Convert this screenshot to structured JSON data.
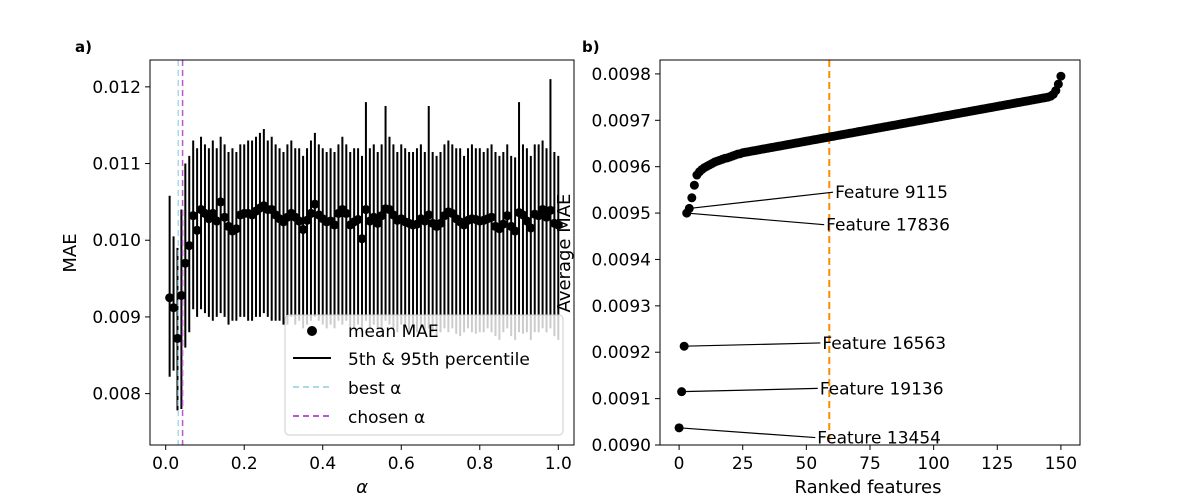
{
  "chart_data": [
    {
      "type": "scatter",
      "panel_label": "a)",
      "xlabel": "α",
      "ylabel": "MAE",
      "xlim": [
        -0.04,
        1.04
      ],
      "ylim": [
        0.00733,
        0.01235
      ],
      "xticks": [
        0.0,
        0.2,
        0.4,
        0.6,
        0.8,
        1.0
      ],
      "xtick_labels": [
        "0.0",
        "0.2",
        "0.4",
        "0.6",
        "0.8",
        "1.0"
      ],
      "yticks": [
        0.008,
        0.009,
        0.01,
        0.011,
        0.012
      ],
      "ytick_labels": [
        "0.008",
        "0.009",
        "0.010",
        "0.011",
        "0.012"
      ],
      "best_alpha": 0.032,
      "chosen_alpha": 0.043,
      "colors": {
        "points": "#000000",
        "errorbars": "#000000",
        "best_alpha": "#add8e6",
        "chosen_alpha": "#ba55d3"
      },
      "legend": {
        "placement": "lower-right",
        "entries": [
          {
            "key": "mean",
            "label": "mean MAE"
          },
          {
            "key": "errorbar",
            "label": "5th & 95th percentile"
          },
          {
            "key": "best",
            "label": "best α"
          },
          {
            "key": "chosen",
            "label": "chosen α"
          }
        ]
      },
      "series": [
        {
          "alpha": [
            0.01,
            0.02,
            0.03,
            0.04,
            0.05,
            0.06,
            0.07,
            0.08,
            0.09,
            0.1,
            0.11,
            0.12,
            0.13,
            0.14,
            0.15,
            0.16,
            0.17,
            0.18,
            0.19,
            0.2,
            0.21,
            0.22,
            0.23,
            0.24,
            0.25,
            0.26,
            0.27,
            0.28,
            0.29,
            0.3,
            0.31,
            0.32,
            0.33,
            0.34,
            0.35,
            0.36,
            0.37,
            0.38,
            0.39,
            0.4,
            0.41,
            0.42,
            0.43,
            0.44,
            0.45,
            0.46,
            0.47,
            0.48,
            0.49,
            0.5,
            0.51,
            0.52,
            0.53,
            0.54,
            0.55,
            0.56,
            0.57,
            0.58,
            0.59,
            0.6,
            0.61,
            0.62,
            0.63,
            0.64,
            0.65,
            0.66,
            0.67,
            0.68,
            0.69,
            0.7,
            0.71,
            0.72,
            0.73,
            0.74,
            0.75,
            0.76,
            0.77,
            0.78,
            0.79,
            0.8,
            0.81,
            0.82,
            0.83,
            0.84,
            0.85,
            0.86,
            0.87,
            0.88,
            0.89,
            0.9,
            0.91,
            0.92,
            0.93,
            0.94,
            0.95,
            0.96,
            0.97,
            0.98,
            0.99,
            1.0
          ],
          "mean_mae": [
            0.00925,
            0.00912,
            0.00872,
            0.00928,
            0.0097,
            0.00993,
            0.01032,
            0.01013,
            0.0104,
            0.01035,
            0.01028,
            0.01035,
            0.01025,
            0.0105,
            0.0103,
            0.01018,
            0.01012,
            0.01015,
            0.01033,
            0.01035,
            0.01035,
            0.01033,
            0.01038,
            0.01042,
            0.01045,
            0.0104,
            0.0104,
            0.01033,
            0.01028,
            0.01024,
            0.0103,
            0.01035,
            0.0103,
            0.01025,
            0.01014,
            0.01026,
            0.01035,
            0.01047,
            0.01033,
            0.01028,
            0.01024,
            0.01025,
            0.0102,
            0.01035,
            0.0104,
            0.01035,
            0.0102,
            0.01024,
            0.01027,
            0.01002,
            0.0104,
            0.01025,
            0.0103,
            0.01022,
            0.01032,
            0.01041,
            0.0104,
            0.01033,
            0.01026,
            0.01028,
            0.01024,
            0.01022,
            0.0102,
            0.01021,
            0.01028,
            0.01025,
            0.01033,
            0.01022,
            0.01018,
            0.01022,
            0.01032,
            0.01037,
            0.01035,
            0.01028,
            0.01024,
            0.0102,
            0.01026,
            0.01028,
            0.01027,
            0.01025,
            0.01026,
            0.01028,
            0.0103,
            0.01018,
            0.01015,
            0.01021,
            0.01032,
            0.01018,
            0.01012,
            0.01036,
            0.01033,
            0.01025,
            0.01016,
            0.01034,
            0.01032,
            0.0104,
            0.0103,
            0.01039,
            0.01022,
            0.0102
          ],
          "p5": [
            0.00822,
            0.0083,
            0.00778,
            0.0078,
            0.0086,
            0.0088,
            0.0091,
            0.009,
            0.0091,
            0.00905,
            0.009,
            0.00895,
            0.009,
            0.00905,
            0.009,
            0.0089,
            0.00895,
            0.00895,
            0.009,
            0.009,
            0.00895,
            0.00895,
            0.009,
            0.009,
            0.00905,
            0.009,
            0.00895,
            0.00895,
            0.00895,
            0.0089,
            0.0089,
            0.009,
            0.0089,
            0.00895,
            0.00885,
            0.0089,
            0.00895,
            0.009,
            0.00895,
            0.0089,
            0.00885,
            0.0089,
            0.00885,
            0.00895,
            0.0089,
            0.00895,
            0.00885,
            0.00885,
            0.0089,
            0.0088,
            0.00895,
            0.00885,
            0.0089,
            0.00885,
            0.0088,
            0.00895,
            0.0089,
            0.00885,
            0.0088,
            0.0089,
            0.00885,
            0.0088,
            0.00885,
            0.0088,
            0.00885,
            0.0088,
            0.00885,
            0.0088,
            0.00875,
            0.0088,
            0.00885,
            0.0088,
            0.00885,
            0.00878,
            0.00875,
            0.0088,
            0.00885,
            0.0088,
            0.00878,
            0.0088,
            0.0088,
            0.00885,
            0.0088,
            0.00875,
            0.0087,
            0.0088,
            0.00885,
            0.00875,
            0.0087,
            0.0088,
            0.00878,
            0.0088,
            0.0087,
            0.0088,
            0.0088,
            0.00885,
            0.0088,
            0.00885,
            0.00875,
            0.0087
          ],
          "p95": [
            0.01058,
            0.01005,
            0.0099,
            0.0104,
            0.011,
            0.0111,
            0.0113,
            0.0112,
            0.01135,
            0.01125,
            0.0112,
            0.0113,
            0.0112,
            0.01135,
            0.01125,
            0.01115,
            0.0112,
            0.01115,
            0.01125,
            0.01125,
            0.0113,
            0.0113,
            0.01135,
            0.0114,
            0.01145,
            0.0113,
            0.01135,
            0.01125,
            0.0112,
            0.01115,
            0.01125,
            0.0113,
            0.0112,
            0.0112,
            0.0111,
            0.0112,
            0.0113,
            0.0114,
            0.01125,
            0.0112,
            0.01115,
            0.0112,
            0.01115,
            0.01125,
            0.01135,
            0.01125,
            0.01115,
            0.0112,
            0.0112,
            0.0111,
            0.0118,
            0.0112,
            0.01125,
            0.01115,
            0.01125,
            0.01175,
            0.01135,
            0.01125,
            0.01115,
            0.01125,
            0.0112,
            0.01115,
            0.01115,
            0.0112,
            0.01125,
            0.01115,
            0.01175,
            0.01115,
            0.0111,
            0.01115,
            0.01125,
            0.0113,
            0.01125,
            0.0112,
            0.0112,
            0.0111,
            0.0112,
            0.01125,
            0.0112,
            0.0112,
            0.01115,
            0.0112,
            0.01125,
            0.01115,
            0.0111,
            0.01115,
            0.01125,
            0.0111,
            0.01108,
            0.0118,
            0.01125,
            0.0112,
            0.0111,
            0.01125,
            0.01125,
            0.0113,
            0.0112,
            0.0121,
            0.01115,
            0.0111
          ]
        }
      ]
    },
    {
      "type": "scatter",
      "panel_label": "b)",
      "xlabel": "Ranked features",
      "ylabel": "Average MAE",
      "xlim": [
        -7.5,
        157.5
      ],
      "ylim": [
        0.009,
        0.00983
      ],
      "xticks": [
        0,
        25,
        50,
        75,
        100,
        125,
        150
      ],
      "xtick_labels": [
        "0",
        "25",
        "50",
        "75",
        "100",
        "125",
        "150"
      ],
      "yticks": [
        0.009,
        0.0091,
        0.0092,
        0.0093,
        0.0094,
        0.0095,
        0.0096,
        0.0097,
        0.0098
      ],
      "ytick_labels": [
        "0.0090",
        "0.0091",
        "0.0092",
        "0.0093",
        "0.0094",
        "0.0095",
        "0.0096",
        "0.0097",
        "0.0098"
      ],
      "cutoff_x": 59,
      "colors": {
        "points": "#000000",
        "cutoff": "#ff8c00"
      },
      "annotations": [
        {
          "label": "Feature 13454",
          "point_x": 0,
          "point_y": 0.009037,
          "text_x": 53.5,
          "text_y": 0.009016
        },
        {
          "label": "Feature 19136",
          "point_x": 1,
          "point_y": 0.009115,
          "text_x": 54.5,
          "text_y": 0.009122
        },
        {
          "label": "Feature 16563",
          "point_x": 2,
          "point_y": 0.009213,
          "text_x": 55.5,
          "text_y": 0.00922
        },
        {
          "label": "Feature 17836",
          "point_x": 3,
          "point_y": 0.0095,
          "text_x": 57,
          "text_y": 0.009475
        },
        {
          "label": "Feature 9115",
          "point_x": 4,
          "point_y": 0.00951,
          "text_x": 60.5,
          "text_y": 0.009545
        }
      ],
      "series": [
        {
          "rank": [
            0,
            1,
            2,
            3,
            4,
            5,
            6,
            7,
            8,
            9,
            10,
            11,
            12,
            13,
            14,
            15,
            16,
            17,
            18,
            19,
            20,
            21,
            22,
            23,
            24,
            25,
            26,
            27,
            28,
            29,
            30,
            31,
            32,
            33,
            34,
            35,
            36,
            37,
            38,
            39,
            40,
            41,
            42,
            43,
            44,
            45,
            46,
            47,
            48,
            49,
            50,
            51,
            52,
            53,
            54,
            55,
            56,
            57,
            58,
            59,
            60,
            61,
            62,
            63,
            64,
            65,
            66,
            67,
            68,
            69,
            70,
            71,
            72,
            73,
            74,
            75,
            76,
            77,
            78,
            79,
            80,
            81,
            82,
            83,
            84,
            85,
            86,
            87,
            88,
            89,
            90,
            91,
            92,
            93,
            94,
            95,
            96,
            97,
            98,
            99,
            100,
            101,
            102,
            103,
            104,
            105,
            106,
            107,
            108,
            109,
            110,
            111,
            112,
            113,
            114,
            115,
            116,
            117,
            118,
            119,
            120,
            121,
            122,
            123,
            124,
            125,
            126,
            127,
            128,
            129,
            130,
            131,
            132,
            133,
            134,
            135,
            136,
            137,
            138,
            139,
            140,
            141,
            142,
            143,
            144,
            145,
            146,
            147,
            148,
            149,
            150
          ],
          "avg_mae": [
            0.009037,
            0.009115,
            0.009213,
            0.0095,
            0.00951,
            0.009533,
            0.00956,
            0.009582,
            0.009589,
            0.009594,
            0.009598,
            0.009601,
            0.009604,
            0.009607,
            0.00961,
            0.009612,
            0.009614,
            0.009616,
            0.009618,
            0.009619,
            0.009621,
            0.009623,
            0.009625,
            0.009627,
            0.009628,
            0.00963,
            0.009631,
            0.009632,
            0.009633,
            0.009634,
            0.009635,
            0.009636,
            0.009637,
            0.009638,
            0.009639,
            0.00964,
            0.009641,
            0.009642,
            0.009643,
            0.009644,
            0.009645,
            0.009646,
            0.009647,
            0.009648,
            0.009649,
            0.00965,
            0.009651,
            0.009652,
            0.009653,
            0.009654,
            0.009655,
            0.009656,
            0.009657,
            0.009658,
            0.009659,
            0.00966,
            0.009661,
            0.009662,
            0.009663,
            0.009664,
            0.009665,
            0.009666,
            0.009667,
            0.009668,
            0.009669,
            0.00967,
            0.009671,
            0.009672,
            0.009673,
            0.009674,
            0.009675,
            0.009676,
            0.009677,
            0.009678,
            0.009679,
            0.00968,
            0.009681,
            0.009682,
            0.009683,
            0.009684,
            0.009685,
            0.009686,
            0.009687,
            0.009688,
            0.009689,
            0.00969,
            0.009691,
            0.009692,
            0.009693,
            0.009694,
            0.009695,
            0.009696,
            0.009697,
            0.009698,
            0.009699,
            0.0097,
            0.009701,
            0.009702,
            0.009703,
            0.009704,
            0.009705,
            0.009706,
            0.009707,
            0.009708,
            0.009709,
            0.00971,
            0.009711,
            0.009712,
            0.009713,
            0.009714,
            0.009715,
            0.009716,
            0.009717,
            0.009718,
            0.009719,
            0.00972,
            0.009721,
            0.009722,
            0.009723,
            0.009724,
            0.009725,
            0.009726,
            0.009727,
            0.009728,
            0.009729,
            0.00973,
            0.009731,
            0.009732,
            0.009733,
            0.009734,
            0.009735,
            0.009736,
            0.009737,
            0.009738,
            0.009739,
            0.00974,
            0.009741,
            0.009742,
            0.009743,
            0.009744,
            0.009745,
            0.009746,
            0.009747,
            0.009748,
            0.009749,
            0.00975,
            0.009752,
            0.009756,
            0.009764,
            0.009778,
            0.009795
          ]
        }
      ]
    }
  ]
}
